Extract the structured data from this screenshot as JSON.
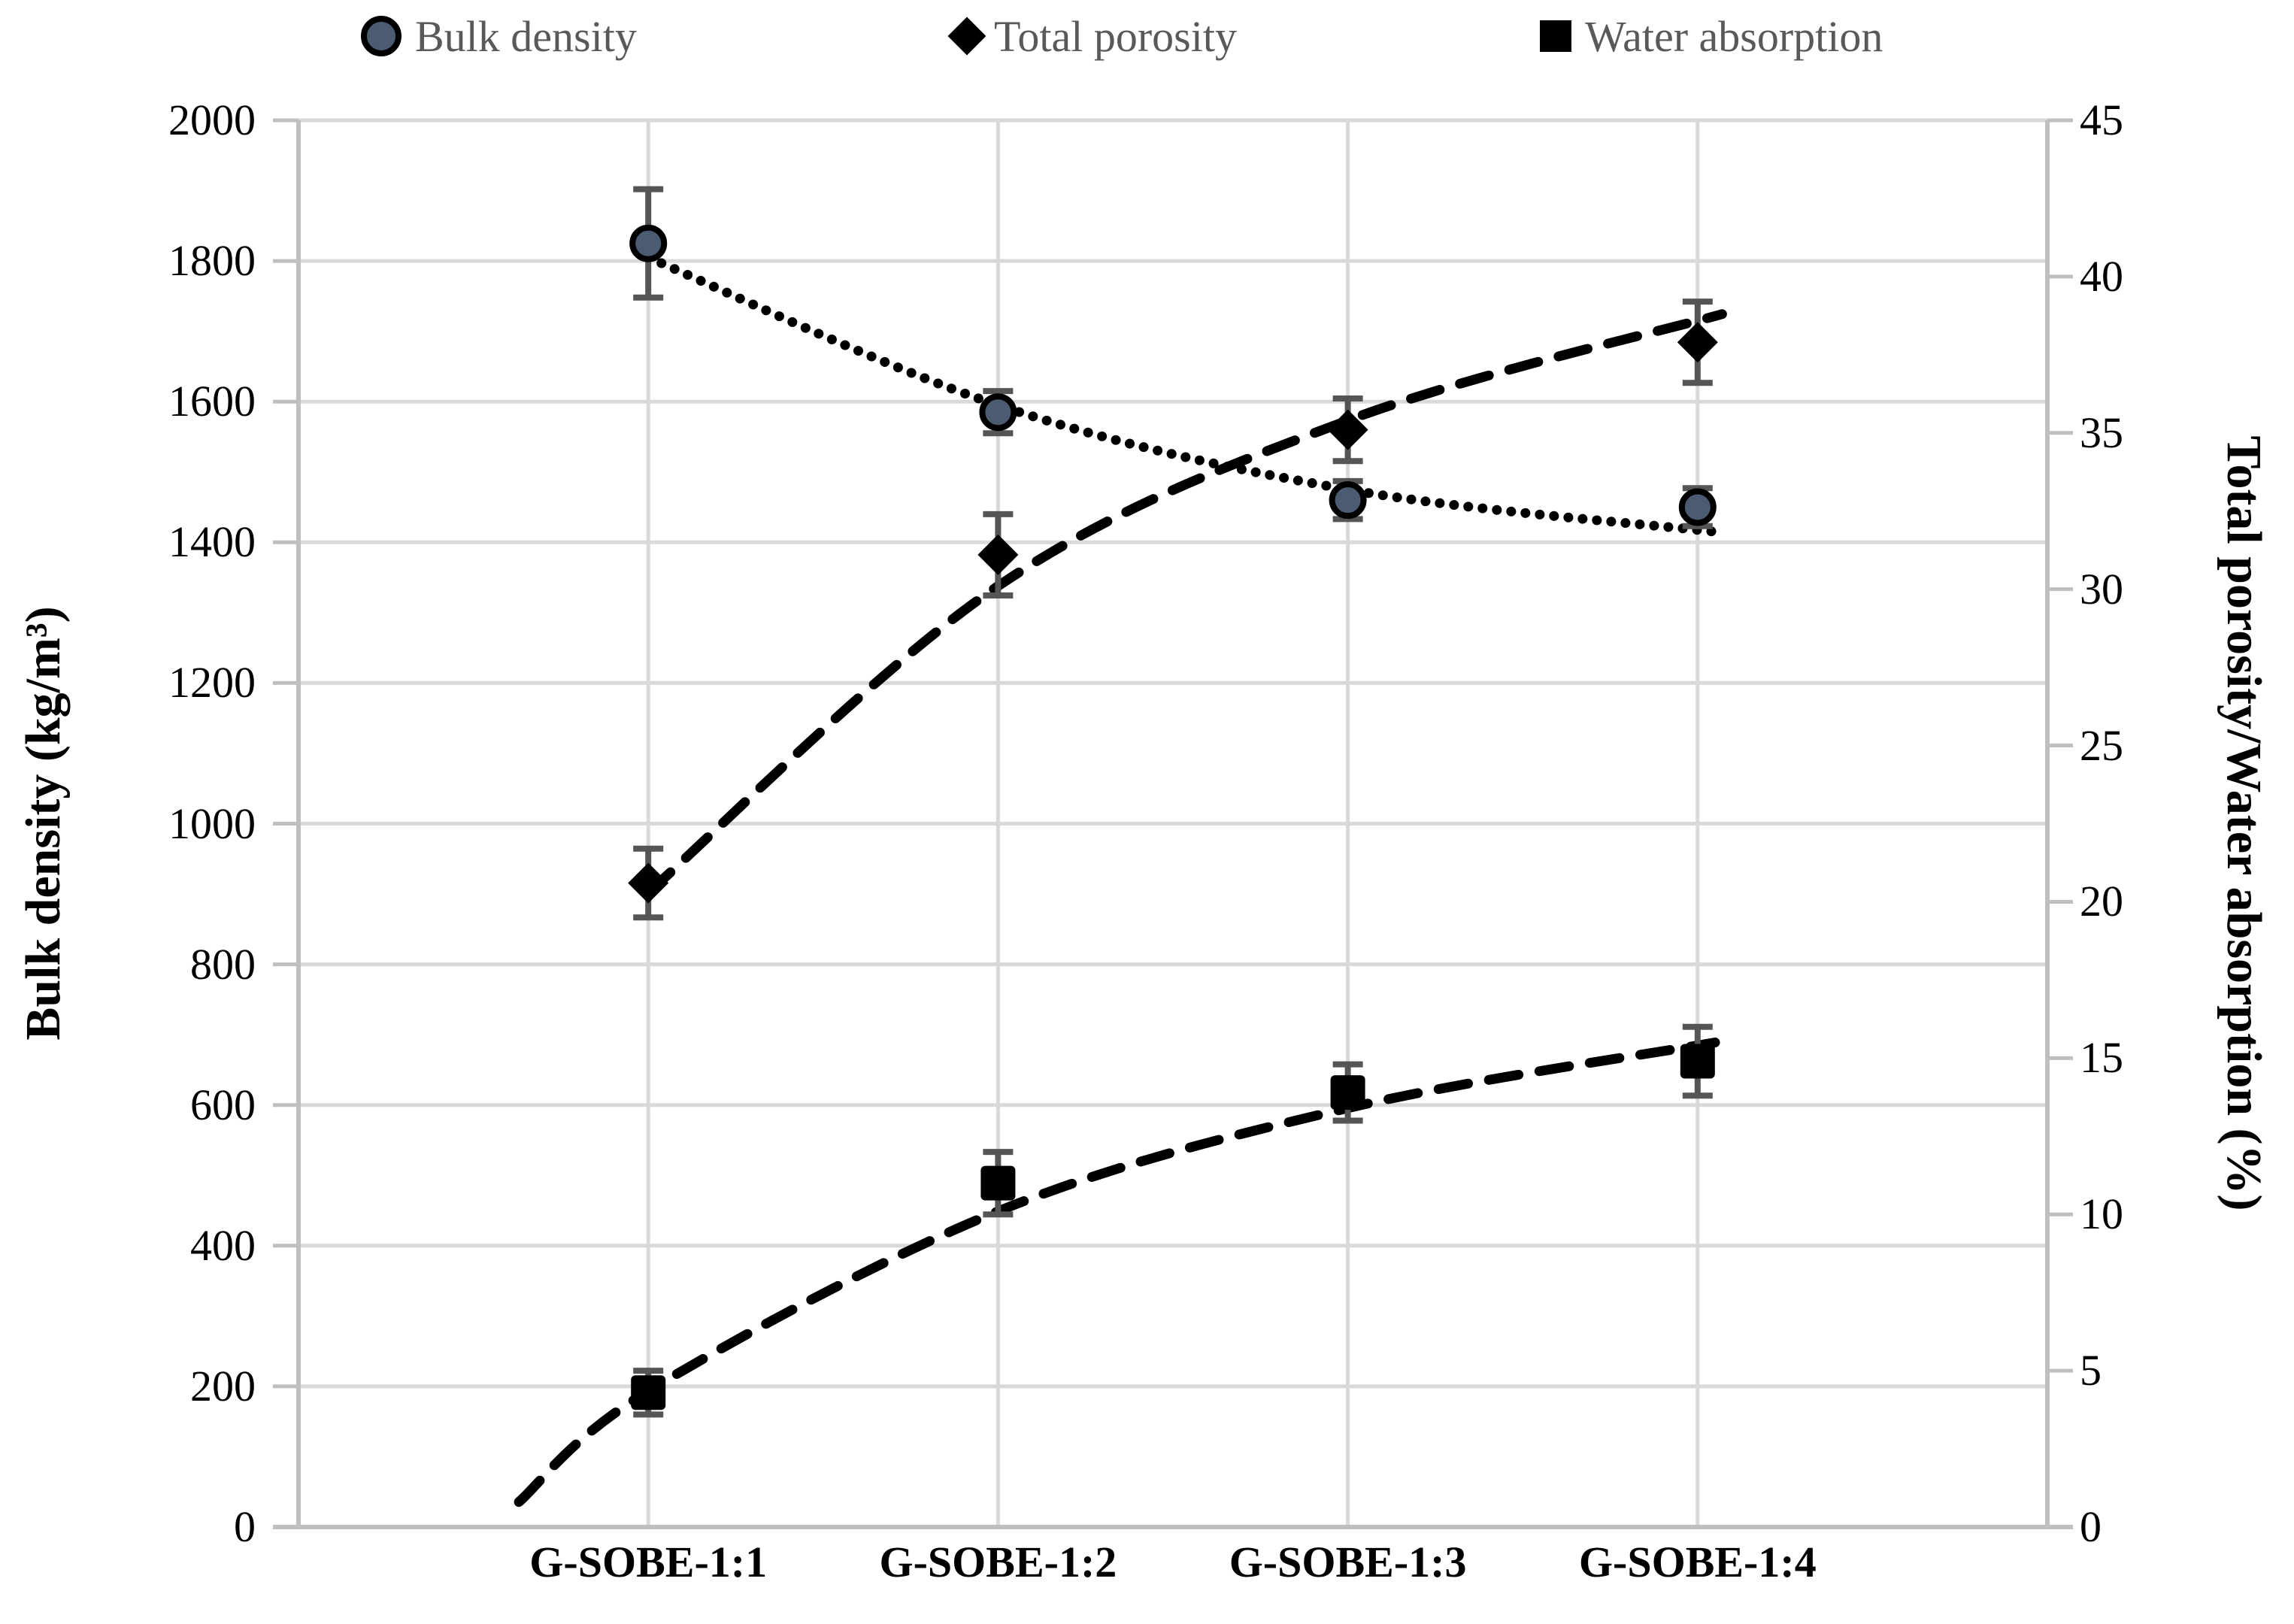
{
  "chart_data": {
    "type": "scatter",
    "title": "",
    "categories": [
      "G-SOBE-1:1",
      "G-SOBE-1:2",
      "G-SOBE-1:3",
      "G-SOBE-1:4"
    ],
    "axes": {
      "left": {
        "label": "Bulk density (kg/m³)",
        "min": 0,
        "max": 2000,
        "step": 200,
        "ticks": [
          "0",
          "200",
          "400",
          "600",
          "800",
          "1000",
          "1200",
          "1400",
          "1600",
          "1800",
          "2000"
        ]
      },
      "right": {
        "label": "Total porosity/Water absorption (%)",
        "min": 0,
        "max": 45,
        "step": 5,
        "ticks": [
          "0",
          "5",
          "10",
          "15",
          "20",
          "25",
          "30",
          "35",
          "40",
          "45"
        ]
      }
    },
    "series": [
      {
        "name": "Bulk density",
        "axis": "left",
        "marker": "circle",
        "marker_color": "#4a5b72",
        "marker_stroke": "#000000",
        "line_style": "dotted",
        "line_color": "#000000",
        "values": [
          1825,
          1585,
          1460,
          1450
        ],
        "errors": [
          77,
          30,
          27,
          27
        ],
        "trend": [
          {
            "x": 0,
            "v": 1805
          },
          {
            "x": 1,
            "v": 1595
          },
          {
            "x": 2,
            "v": 1475
          },
          {
            "x": 3.05,
            "v": 1415
          }
        ]
      },
      {
        "name": "Total porosity",
        "axis": "right",
        "marker": "diamond",
        "marker_color": "#000000",
        "marker_stroke": "#000000",
        "line_style": "dashed",
        "line_color": "#000000",
        "values": [
          20.6,
          31.1,
          35.1,
          37.9
        ],
        "errors": [
          1.1,
          1.3,
          1.0,
          1.3
        ],
        "trend": [
          {
            "x": 0,
            "v": 20.3
          },
          {
            "x": 1,
            "v": 30.1
          },
          {
            "x": 2,
            "v": 35.4
          },
          {
            "x": 3.07,
            "v": 38.8
          }
        ]
      },
      {
        "name": "Water absorption",
        "axis": "right",
        "marker": "square",
        "marker_color": "#000000",
        "marker_stroke": "#000000",
        "line_style": "dashed",
        "line_color": "#000000",
        "values": [
          4.3,
          11.0,
          13.9,
          14.9
        ],
        "errors": [
          0.7,
          1.0,
          0.9,
          1.1
        ],
        "trend": [
          {
            "x": -0.37,
            "v": 0.8
          },
          {
            "x": 0,
            "v": 4.35
          },
          {
            "x": 1,
            "v": 10.1
          },
          {
            "x": 2,
            "v": 13.4
          },
          {
            "x": 3.05,
            "v": 15.5
          }
        ]
      }
    ],
    "legend": {
      "position": "top",
      "text_color": "#595959"
    },
    "grid": {
      "horizontal": true,
      "vertical": true,
      "color": "#d9d9d9"
    },
    "colors": {
      "axis_line": "#bfbfbf",
      "gridline": "#d9d9d9",
      "error_bar": "#555555",
      "tick_text": "#000000"
    }
  }
}
